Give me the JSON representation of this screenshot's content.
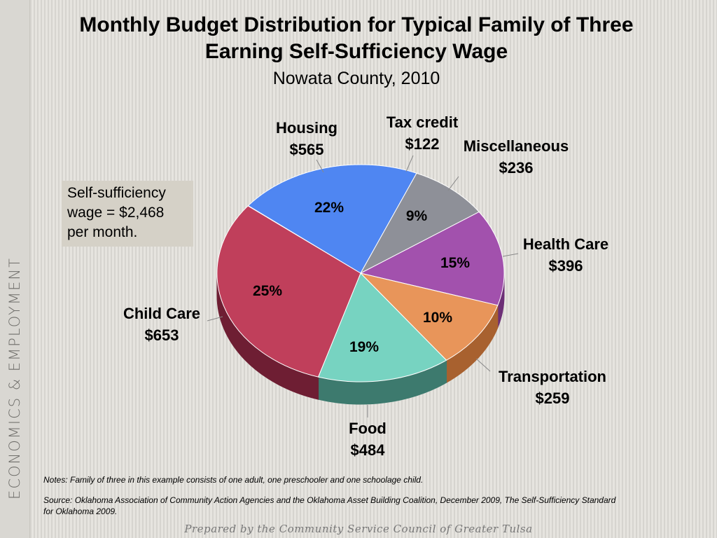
{
  "title_line1": "Monthly Budget Distribution for Typical Family of Three",
  "title_line2": "Earning Self-Sufficiency Wage",
  "subtitle": "Nowata County, 2010",
  "wage_box": [
    "Self-sufficiency",
    "wage = $2,468",
    "per month."
  ],
  "notes": "Notes:  Family of three in this example consists of one adult, one preschooler and one schoolage child.",
  "source": "Source:  Oklahoma Association of Community Action Agencies and the Oklahoma Asset Building Coalition, December 2009, The Self-Sufficiency Standard for Oklahoma 2009.",
  "sidebar_label": "ECONOMICS & EMPLOYMENT",
  "footer": "Prepared by the Community Service Council of Greater Tulsa",
  "chart_data": {
    "type": "pie",
    "title": "Monthly Budget Distribution for Typical Family of Three Earning Self-Sufficiency Wage",
    "subtitle": "Nowata County, 2010",
    "slices": [
      {
        "name": "Housing",
        "amount": "$565",
        "percent": 22,
        "value": 565,
        "color": "#4f86f2",
        "side": "#2e5fb8"
      },
      {
        "name": "Tax credit",
        "amount": "$122",
        "percent": 0,
        "value": 122,
        "color": "#8e9098",
        "side": "#5e6066"
      },
      {
        "name": "Miscellaneous",
        "amount": "$236",
        "percent": 9,
        "value": 236,
        "color": "#a251ad",
        "side": "#6d2f77"
      },
      {
        "name": "Health Care",
        "amount": "$396",
        "percent": 15,
        "value": 396,
        "color": "#e8955a",
        "side": "#a8612f"
      },
      {
        "name": "Transportation",
        "amount": "$259",
        "percent": 10,
        "value": 259,
        "color": "#77d3c1",
        "side": "#3d7a6e"
      },
      {
        "name": "Food",
        "amount": "$484",
        "percent": 19,
        "value": 484,
        "color": "#c03f5b",
        "side": "#6e1e33"
      },
      {
        "name": "Child Care",
        "amount": "$653",
        "percent": 25,
        "value": 653,
        "color": "#c03f5b",
        "side": "#6e1e33"
      }
    ]
  }
}
